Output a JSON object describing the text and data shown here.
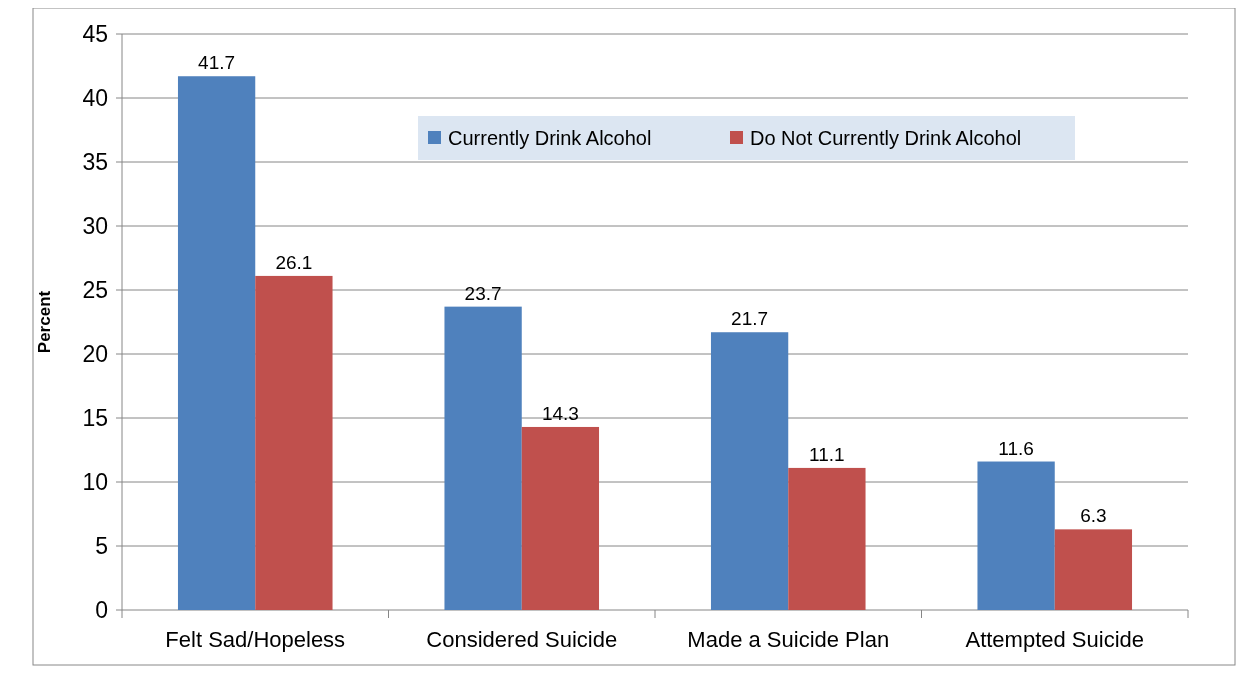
{
  "chart_data": {
    "type": "bar",
    "ylabel": "Percent",
    "categories": [
      "Felt Sad/Hopeless",
      "Considered Suicide",
      "Made a Suicide Plan",
      "Attempted Suicide"
    ],
    "series": [
      {
        "name": "Currently Drink Alcohol",
        "color": "#4f81bd",
        "values": [
          41.7,
          23.7,
          21.7,
          11.6
        ]
      },
      {
        "name": "Do Not Currently Drink Alcohol",
        "color": "#c0504d",
        "values": [
          26.1,
          14.3,
          11.1,
          6.3
        ]
      }
    ],
    "ylim": [
      0,
      45
    ],
    "yticks": [
      0,
      5,
      10,
      15,
      20,
      25,
      30,
      35,
      40,
      45
    ],
    "grid": "y",
    "legend": "top right",
    "data_labels": true
  }
}
